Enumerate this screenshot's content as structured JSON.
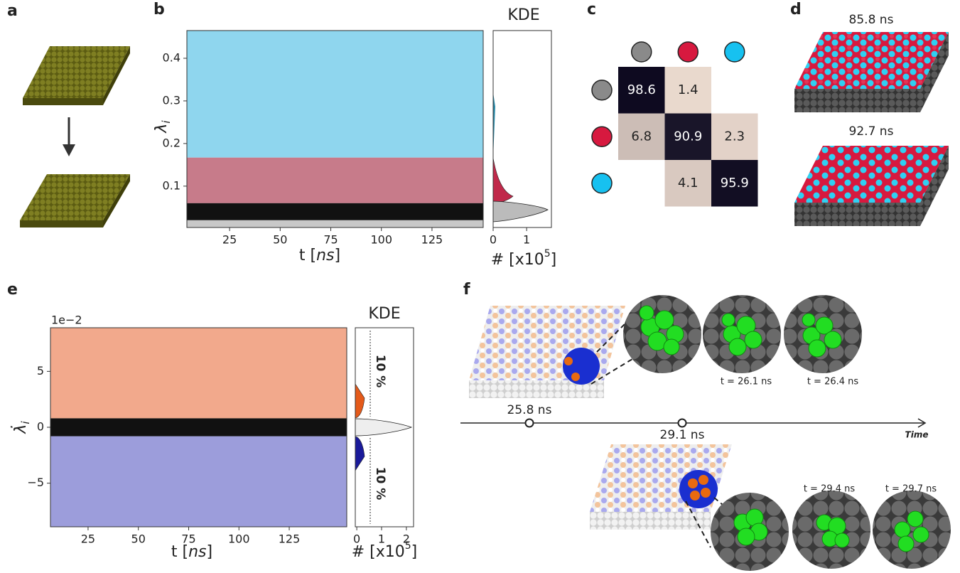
{
  "panels": {
    "a": {
      "label": "a"
    },
    "b": {
      "label": "b",
      "ylabel": {
        "symbol": "λ",
        "sub": "i"
      },
      "xlabel": {
        "pre": "t [",
        "unit": "ns",
        "post": "]"
      },
      "xlim": [
        3.9,
        150.3
      ],
      "ylim": [
        0.003,
        0.465
      ],
      "xticks": [
        25,
        50,
        75,
        100,
        125
      ],
      "yticks": [
        0.1,
        0.2,
        0.3,
        0.4
      ],
      "regions": [
        {
          "color": "#8fd6ee",
          "from": 0.167,
          "to": 0.465
        },
        {
          "color": "#c77b8a",
          "from": 0.06,
          "to": 0.167
        },
        {
          "color": "#111111",
          "from": 0.02,
          "to": 0.06
        },
        {
          "color": "#c8c8c8",
          "from": 0.003,
          "to": 0.02
        }
      ],
      "kde": {
        "title": "KDE",
        "xlim": [
          0,
          1.74
        ],
        "xticks": [
          0,
          1
        ],
        "xlabel": {
          "pre": "# [x10",
          "sup": "5",
          "post": "]"
        }
      }
    },
    "c": {
      "label": "c",
      "markers": [
        "#8a8a8a",
        "#d7193f",
        "#17c1f0"
      ],
      "matrix": [
        [
          98.6,
          1.4,
          null
        ],
        [
          6.8,
          90.9,
          2.3
        ],
        [
          null,
          4.1,
          95.9
        ]
      ]
    },
    "d": {
      "label": "d",
      "captions": [
        "85.8 ns",
        "92.7 ns"
      ]
    },
    "e": {
      "label": "e",
      "offset": "1e−2",
      "ylabel": {
        "symbol": "λ̇",
        "sub": "i"
      },
      "xlabel": {
        "pre": "t [",
        "unit": "ns",
        "post": "]"
      },
      "xlim": [
        6.3,
        153.6
      ],
      "ylim": [
        -8.9,
        8.9
      ],
      "xticks": [
        25,
        50,
        75,
        100,
        125
      ],
      "yticks": [
        {
          "value": -5,
          "label": "−5"
        },
        0,
        5
      ],
      "regions": [
        {
          "color": "#f2a98c",
          "from": 0.8,
          "to": 8.9
        },
        {
          "color": "#9c9ddb",
          "from": -8.9,
          "to": -0.8
        },
        {
          "color": "#111111",
          "from": -0.8,
          "to": 0.8
        }
      ],
      "kde": {
        "title": "KDE",
        "xlim": [
          -0.06,
          2.29
        ],
        "xticks": [
          0,
          1,
          2
        ],
        "xlabel": {
          "pre": "# [x10",
          "sup": "5",
          "post": "]"
        },
        "annotations": [
          "10 %",
          "10 %"
        ]
      }
    },
    "f": {
      "label": "f",
      "events": [
        "25.8 ns",
        "29.1 ns"
      ],
      "axis_label": "Time",
      "snapshots": [
        "t = 26.1 ns",
        "t = 26.4 ns",
        "t = 29.4 ns",
        "t = 29.7 ns"
      ]
    }
  }
}
